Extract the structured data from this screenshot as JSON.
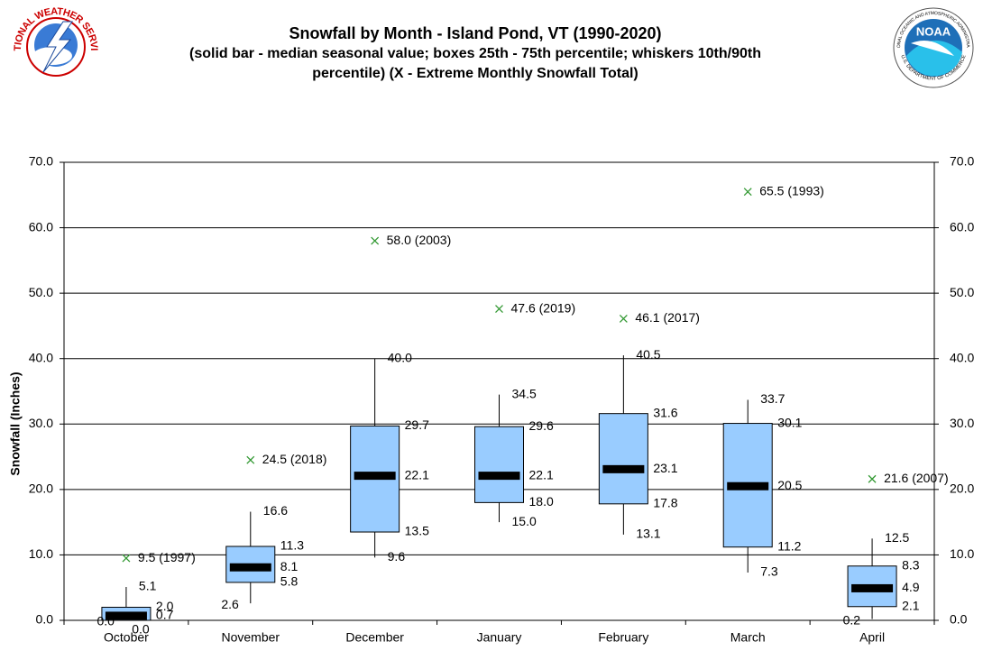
{
  "chart_data": {
    "type": "box",
    "title": "Snowfall by Month - Island Pond, VT (1990-2020)",
    "subtitle": [
      "(solid bar - median seasonal value; boxes 25th - 75th percentile; whiskers 10th/90th",
      "percentile) (X - Extreme Monthly Snowfall Total)"
    ],
    "ylabel": "Snowfall (Inches)",
    "categories": [
      "October",
      "November",
      "December",
      "January",
      "February",
      "March",
      "April"
    ],
    "whisker_low": {
      "values": [
        0,
        2.6,
        9.6,
        15,
        13.1,
        7.3,
        0.2
      ],
      "value_labels": [
        "0.0",
        "2.6",
        "9.6",
        "15.0",
        "13.1",
        "7.3",
        "0.2"
      ]
    },
    "box_low": {
      "values": [
        0,
        5.8,
        13.5,
        18,
        17.8,
        11.2,
        2.1
      ],
      "value_labels": [
        "0.0",
        "5.8",
        "13.5",
        "18.0",
        "17.8",
        "11.2",
        "2.1"
      ]
    },
    "median": {
      "values": [
        0.7,
        8.1,
        22.1,
        22.1,
        23.1,
        20.5,
        4.9
      ],
      "value_labels": [
        "0.7",
        "8.1",
        "22.1",
        "22.1",
        "23.1",
        "20.5",
        "4.9"
      ],
      "color": "#000000"
    },
    "box_high": {
      "values": [
        2,
        11.3,
        29.7,
        29.6,
        31.6,
        30.1,
        8.3
      ],
      "value_labels": [
        "2.0",
        "11.3",
        "29.7",
        "29.6",
        "31.6",
        "30.1",
        "8.3"
      ]
    },
    "whisker_high": {
      "values": [
        5.1,
        16.6,
        40,
        34.5,
        40.5,
        33.7,
        12.5
      ],
      "value_labels": [
        "5.1",
        "16.6",
        "40.0",
        "34.5",
        "40.5",
        "33.7",
        "12.5"
      ]
    },
    "extreme": {
      "values": [
        9.5,
        24.5,
        58,
        47.6,
        46.1,
        65.5,
        21.6
      ],
      "value_labels": [
        "9.5 (1997)",
        "24.5 (2018)",
        "58.0 (2003)",
        "47.6 (2019)",
        "46.1 (2017)",
        "65.5 (1993)",
        "21.6 (2007)"
      ],
      "color": "#339933"
    },
    "box_color": "#99ccff",
    "ylim": [
      0,
      70
    ],
    "yticks": [
      {
        "value": 0,
        "label": "0.0"
      },
      {
        "value": 10,
        "label": "10.0"
      },
      {
        "value": 20,
        "label": "20.0"
      },
      {
        "value": 30,
        "label": "30.0"
      },
      {
        "value": 40,
        "label": "40.0"
      },
      {
        "value": 50,
        "label": "50.0"
      },
      {
        "value": 60,
        "label": "60.0"
      },
      {
        "value": 70,
        "label": "70.0"
      }
    ],
    "grid": true
  },
  "logos": {
    "nws": "NATIONAL WEATHER SERVICE",
    "noaa": "NOAA",
    "noaa_ring_top": "NATIONAL OCEANIC AND ATMOSPHERIC ADMINISTRATION",
    "noaa_ring_bottom": "U.S. DEPARTMENT OF COMMERCE"
  }
}
